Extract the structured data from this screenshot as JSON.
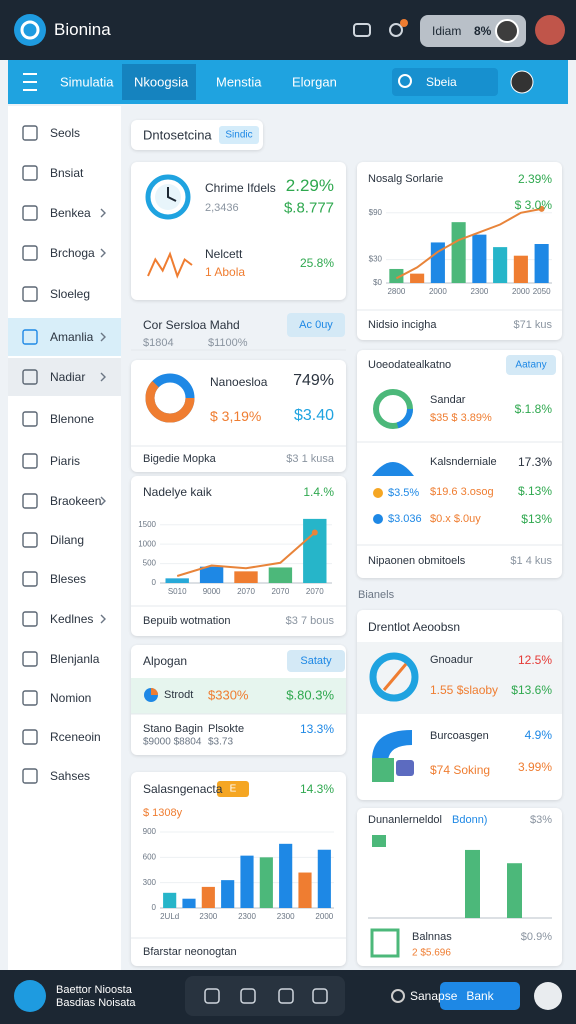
{
  "header": {
    "brand": "Bionina",
    "pill_label": "Idiam",
    "pill_value": "8%"
  },
  "nav": {
    "items": [
      "Simulatia",
      "Nkoogsia",
      "Menstia",
      "Elorgan"
    ],
    "search": "Sbeia"
  },
  "sidebar": {
    "items": [
      "Seols",
      "Bnsiat",
      "Benkea",
      "Brchoga",
      "Sloeleg",
      "Amanlia",
      "Nadiar",
      "Blenone",
      "Piaris",
      "Braokeen",
      "Dilang",
      "Bleses",
      "Kedlnes",
      "Blenjanla",
      "Nomion",
      "Rceneoin",
      "Sahses"
    ]
  },
  "tab": {
    "title": "Dntosetcina",
    "badge": "Sindic"
  },
  "summary_card": {
    "title": "Chrime Ifdels",
    "value": "2.29%",
    "sub": "2,3436",
    "sub_value": "$.8.777",
    "trend_title": "Nelcett",
    "trend_sub": "1 Abola",
    "trend_value": "25.8%",
    "trend": [
      3,
      6,
      4,
      7,
      3,
      6,
      5
    ]
  },
  "filter_row": {
    "title": "Cor Sersloa Mahd",
    "button": "Ac 0uy",
    "left": "$1804",
    "right": "$1100%"
  },
  "donut_card": {
    "title": "Nanoesloa",
    "value": "749%",
    "sub": "$ 3,19%",
    "sub_value": "$3.40",
    "footer": "Bigedie Mopka",
    "footer_value": "$3 1 kusa"
  },
  "line_card": {
    "title": "Nadelye kaik",
    "value": "1.4.%",
    "footer": "Bepuib wotmation",
    "footer_value": "$3 7 bous",
    "chart": {
      "categories": [
        "S010",
        "9000",
        "2070",
        "2070",
        "2070"
      ],
      "bars": [
        120,
        420,
        300,
        400,
        1650
      ],
      "bar_colors": [
        "#27a9d8",
        "#1e88e5",
        "#ef7d31",
        "#4cb87a",
        "#26b5c9"
      ],
      "line": [
        180,
        450,
        380,
        520,
        1300
      ],
      "line_color": "#e8843a",
      "ylim": [
        0,
        1750
      ],
      "yticks": [
        0,
        500,
        1000,
        1500
      ]
    }
  },
  "pair_card": {
    "title": "Alpogan",
    "button": "Sataty",
    "row_label": "Strodt",
    "row_value": "$330%",
    "row_value2": "$.80.3%",
    "col1": "Stano Bagin",
    "col1_sub": "$9000 $8804",
    "col2": "Plsokte",
    "col2_sub": "$3.73",
    "col_value": "13.3%"
  },
  "sales_card": {
    "title": "Salasngenacta",
    "badge": "E",
    "value": "14.3%",
    "sub": "$ 1308y",
    "footer": "Bfarstar neonogtan",
    "chart": {
      "categories": [
        "2ULd",
        null,
        "2300",
        null,
        "2300",
        null,
        "2300",
        null,
        "2000"
      ],
      "bars": [
        180,
        110,
        250,
        330,
        620,
        600,
        760,
        420,
        690
      ],
      "bar_colors": [
        "#26b5c9",
        "#1e88e5",
        "#ef7d31",
        "#1e88e5",
        "#1e88e5",
        "#4cb87a",
        "#1e88e5",
        "#ef7d31",
        "#1e88e5"
      ],
      "ylim": [
        0,
        900
      ],
      "yticks": [
        0,
        300,
        600,
        900
      ]
    }
  },
  "right_chart_card": {
    "title": "Nosalg Sorlarie",
    "value": "2.39%",
    "sub_value": "$ 3.0%",
    "footer": "Nidsio incigha",
    "footer_value": "$71 kus",
    "chart": {
      "categories": [
        "2800",
        null,
        "2000",
        null,
        "2300",
        null,
        "2000",
        "2050"
      ],
      "bars": [
        18,
        12,
        52,
        78,
        62,
        46,
        35,
        50
      ],
      "bar_colors": [
        "#4cb87a",
        "#ef7d31",
        "#1e88e5",
        "#4cb87a",
        "#1e88e5",
        "#26b5c9",
        "#ef7d31",
        "#1e88e5"
      ],
      "line": [
        6,
        20,
        40,
        55,
        65,
        75,
        90,
        95
      ],
      "line_color": "#e8843a",
      "ylim": [
        0,
        100
      ],
      "yticks": [
        {
          "value": 0,
          "label": "$0"
        },
        {
          "value": 30,
          "label": "$30"
        },
        {
          "value": 90,
          "label": "$90"
        }
      ]
    }
  },
  "list_card": {
    "title": "Uoeodatealkatno",
    "button": "Aatany",
    "r1_label": "Sandar",
    "r1_sub": "$35 $ 3.89%",
    "r1_value": "$.1.8%",
    "r2_label": "Kalsnderniale",
    "r2_value": "17.3%",
    "r3_a": "$3.5%",
    "r3_b": "$19.6 3.osog",
    "r3_value": "$.13%",
    "r4_a": "$3.036",
    "r4_b": "$0.x $.0uy",
    "r4_value": "$13%",
    "footer": "Nipaonen obmitoels",
    "footer_value": "$1 4 kus"
  },
  "section_label": "Bianels",
  "activity_card": {
    "title": "Drentlot Aeoobsn",
    "r1_label": "Gnoadur",
    "r1_sub": "1.55 $slaoby",
    "r1_value": "12.5%",
    "r1_value2": "$13.6%",
    "r2_label": "Burcoasgen",
    "r2_sub": "$74 Soking",
    "r2_value": "4.9%",
    "r2_value2": "3.99%"
  },
  "bar_card": {
    "title": "Dunanlerneldol",
    "tag": "Bdonn)",
    "value": "$3%",
    "chart": {
      "values": [
        82,
        66
      ],
      "ylim": [
        0,
        100
      ],
      "color": "#4cb87a"
    },
    "item": "Balnnas",
    "item_sub": "2 $5.696",
    "item_value": "$0.9%"
  },
  "footer": {
    "brand_line1": "Baettor Nioosta",
    "brand_line2": "Basdias Noisata",
    "status": "Sanapse",
    "button": "Bank"
  }
}
